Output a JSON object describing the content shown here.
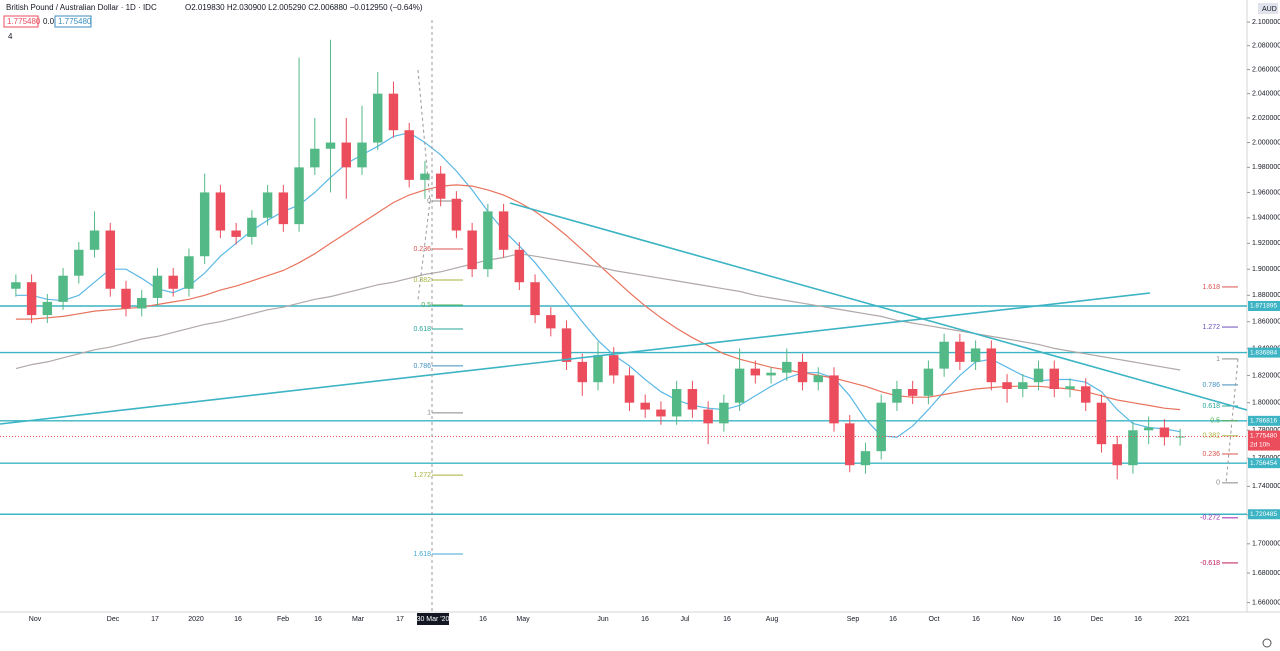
{
  "chart_data": {
    "type": "candlestick",
    "title": "British Pound / Australian Dollar · 1D · IDC",
    "ohlc_header": "O2.019830 H2.030900 L2.005290 C2.006880 −0.012950 (−0.64%)",
    "indicator_labels": [
      "1.775480",
      "0.0",
      "1.775480",
      "4"
    ],
    "currency": "AUD",
    "log_scale": true,
    "ylim": [
      1.6537,
      2.1103
    ],
    "yticks": [
      {
        "value": 2.1,
        "label": "2.100000"
      },
      {
        "value": 2.08,
        "label": "2.080000"
      },
      {
        "value": 2.06,
        "label": "2.060000"
      },
      {
        "value": 2.04,
        "label": "2.040000"
      },
      {
        "value": 2.02,
        "label": "2.020000"
      },
      {
        "value": 2.0,
        "label": "2.000000"
      },
      {
        "value": 1.98,
        "label": "1.980000"
      },
      {
        "value": 1.96,
        "label": "1.960000"
      },
      {
        "value": 1.94,
        "label": "1.940000"
      },
      {
        "value": 1.92,
        "label": "1.920000"
      },
      {
        "value": 1.9,
        "label": "1.900000"
      },
      {
        "value": 1.88,
        "label": "1.880000"
      },
      {
        "value": 1.86,
        "label": "1.860000"
      },
      {
        "value": 1.84,
        "label": "1.840000"
      },
      {
        "value": 1.82,
        "label": "1.820000"
      },
      {
        "value": 1.8,
        "label": "1.800000"
      },
      {
        "value": 1.78,
        "label": "1.780000"
      },
      {
        "value": 1.76,
        "label": "1.760000"
      },
      {
        "value": 1.74,
        "label": "1.740000"
      },
      {
        "value": 1.72,
        "label": "1.720000"
      },
      {
        "value": 1.7,
        "label": "1.700000"
      },
      {
        "value": 1.68,
        "label": "1.680000"
      },
      {
        "value": 1.66,
        "label": "1.660000"
      }
    ],
    "x_labels": [
      "Nov",
      "Dec",
      "17",
      "2020",
      "16",
      "Feb",
      "16",
      "Mar",
      "17",
      "16",
      "May",
      "Jun",
      "16",
      "Jul",
      "16",
      "Aug",
      "Sep",
      "16",
      "Oct",
      "16",
      "Nov",
      "16",
      "Dec",
      "16",
      "2021"
    ],
    "crosshair_label": "30 Mar '20",
    "up_color": "#53b987",
    "down_color": "#eb4d5c",
    "categories": [
      null,
      null,
      null,
      null,
      null,
      null,
      null,
      null,
      null,
      null,
      null,
      null,
      null,
      null,
      null,
      null,
      null,
      null,
      null,
      null,
      null,
      null,
      null,
      null,
      null,
      null,
      null,
      null,
      null,
      null,
      null,
      null,
      null,
      null,
      null,
      null,
      null,
      null,
      null,
      null,
      null,
      null,
      null,
      null,
      null,
      null,
      null,
      null,
      null,
      null,
      null,
      null,
      null,
      null,
      null,
      null,
      null,
      null,
      null,
      null,
      null,
      null,
      null,
      null,
      null,
      null,
      null,
      null,
      null,
      null,
      null,
      null,
      null,
      null,
      null
    ],
    "open": [
      1.885,
      1.89,
      1.865,
      1.875,
      1.895,
      1.915,
      1.93,
      1.885,
      1.87,
      1.878,
      1.895,
      1.885,
      1.91,
      1.96,
      1.93,
      1.925,
      1.94,
      1.96,
      1.935,
      1.98,
      1.995,
      2.0,
      1.98,
      2.0,
      2.04,
      2.01,
      1.97,
      1.975,
      1.955,
      1.93,
      1.9,
      1.945,
      1.915,
      1.89,
      1.865,
      1.855,
      1.83,
      1.815,
      1.835,
      1.82,
      1.8,
      1.795,
      1.79,
      1.81,
      1.795,
      1.785,
      1.8,
      1.825,
      1.82,
      1.822,
      1.83,
      1.815,
      1.82,
      1.785,
      1.755,
      1.765,
      1.8,
      1.81,
      1.805,
      1.825,
      1.845,
      1.83,
      1.84,
      1.815,
      1.81,
      1.815,
      1.825,
      1.81,
      1.812,
      1.8,
      1.77,
      1.755,
      1.78,
      1.782,
      1.775
    ],
    "high": [
      1.896,
      1.896,
      1.881,
      1.901,
      1.921,
      1.945,
      1.936,
      1.891,
      1.884,
      1.901,
      1.901,
      1.916,
      1.975,
      1.966,
      1.936,
      1.946,
      1.966,
      1.966,
      2.07,
      2.02,
      2.085,
      2.02,
      2.03,
      2.058,
      2.05,
      2.016,
      1.985,
      1.981,
      1.961,
      1.936,
      1.951,
      1.951,
      1.921,
      1.896,
      1.871,
      1.861,
      1.836,
      1.845,
      1.841,
      1.826,
      1.806,
      1.801,
      1.816,
      1.816,
      1.801,
      1.806,
      1.84,
      1.831,
      1.826,
      1.84,
      1.836,
      1.826,
      1.826,
      1.791,
      1.771,
      1.806,
      1.816,
      1.816,
      1.831,
      1.851,
      1.851,
      1.846,
      1.846,
      1.821,
      1.821,
      1.831,
      1.831,
      1.818,
      1.818,
      1.806,
      1.776,
      1.786,
      1.79,
      1.788,
      1.781
    ],
    "low": [
      1.879,
      1.859,
      1.859,
      1.869,
      1.889,
      1.909,
      1.879,
      1.864,
      1.864,
      1.872,
      1.879,
      1.879,
      1.904,
      1.924,
      1.919,
      1.919,
      1.934,
      1.929,
      1.929,
      1.974,
      1.96,
      1.955,
      1.974,
      1.994,
      2.004,
      1.964,
      1.955,
      1.949,
      1.924,
      1.894,
      1.894,
      1.909,
      1.884,
      1.859,
      1.849,
      1.824,
      1.805,
      1.809,
      1.814,
      1.794,
      1.789,
      1.784,
      1.784,
      1.789,
      1.77,
      1.779,
      1.794,
      1.814,
      1.814,
      1.816,
      1.809,
      1.809,
      1.779,
      1.75,
      1.749,
      1.759,
      1.794,
      1.799,
      1.799,
      1.819,
      1.824,
      1.824,
      1.809,
      1.8,
      1.804,
      1.809,
      1.804,
      1.804,
      1.794,
      1.764,
      1.745,
      1.749,
      1.77,
      1.769,
      1.769
    ],
    "close": [
      1.89,
      1.865,
      1.875,
      1.895,
      1.915,
      1.93,
      1.885,
      1.87,
      1.878,
      1.895,
      1.885,
      1.91,
      1.96,
      1.93,
      1.925,
      1.94,
      1.96,
      1.935,
      1.98,
      1.995,
      2.0,
      1.98,
      2.0,
      2.04,
      2.01,
      1.97,
      1.975,
      1.955,
      1.93,
      1.9,
      1.945,
      1.915,
      1.89,
      1.865,
      1.855,
      1.83,
      1.815,
      1.835,
      1.82,
      1.8,
      1.795,
      1.79,
      1.81,
      1.795,
      1.785,
      1.8,
      1.825,
      1.82,
      1.822,
      1.83,
      1.815,
      1.82,
      1.785,
      1.755,
      1.765,
      1.8,
      1.81,
      1.805,
      1.825,
      1.845,
      1.83,
      1.84,
      1.815,
      1.81,
      1.815,
      1.825,
      1.81,
      1.812,
      1.8,
      1.77,
      1.755,
      1.78,
      1.782,
      1.775,
      1.7755
    ],
    "moving_averages": [
      {
        "color": "#5bb8e6",
        "values": [
          1.88,
          1.88,
          1.877,
          1.876,
          1.88,
          1.89,
          1.9,
          1.9,
          1.893,
          1.885,
          1.882,
          1.887,
          1.897,
          1.91,
          1.92,
          1.93,
          1.938,
          1.945,
          1.95,
          1.96,
          1.972,
          1.983,
          1.99,
          1.997,
          2.005,
          2.008,
          2.0,
          1.99,
          1.977,
          1.962,
          1.945,
          1.93,
          1.918,
          1.905,
          1.89,
          1.875,
          1.86,
          1.846,
          1.835,
          1.827,
          1.817,
          1.808,
          1.802,
          1.798,
          1.796,
          1.795,
          1.798,
          1.805,
          1.812,
          1.818,
          1.822,
          1.822,
          1.818,
          1.805,
          1.788,
          1.776,
          1.775,
          1.783,
          1.795,
          1.808,
          1.82,
          1.83,
          1.832,
          1.826,
          1.82,
          1.816,
          1.817,
          1.817,
          1.815,
          1.808,
          1.795,
          1.785,
          1.782,
          1.781,
          1.779
        ]
      },
      {
        "color": "#e8735c",
        "values": [
          1.862,
          1.862,
          1.863,
          1.864,
          1.866,
          1.868,
          1.869,
          1.87,
          1.871,
          1.873,
          1.875,
          1.877,
          1.88,
          1.884,
          1.887,
          1.891,
          1.895,
          1.899,
          1.905,
          1.912,
          1.92,
          1.928,
          1.936,
          1.944,
          1.952,
          1.958,
          1.962,
          1.965,
          1.966,
          1.965,
          1.962,
          1.958,
          1.952,
          1.945,
          1.936,
          1.926,
          1.915,
          1.904,
          1.893,
          1.882,
          1.872,
          1.863,
          1.855,
          1.848,
          1.842,
          1.836,
          1.832,
          1.829,
          1.826,
          1.824,
          1.822,
          1.82,
          1.818,
          1.815,
          1.812,
          1.808,
          1.805,
          1.804,
          1.804,
          1.806,
          1.808,
          1.81,
          1.811,
          1.812,
          1.812,
          1.812,
          1.811,
          1.81,
          1.808,
          1.805,
          1.802,
          1.8,
          1.798,
          1.796,
          1.795
        ]
      },
      {
        "color": "#b0a8a8",
        "values": [
          1.825,
          1.828,
          1.83,
          1.833,
          1.836,
          1.839,
          1.841,
          1.844,
          1.847,
          1.849,
          1.852,
          1.855,
          1.858,
          1.86,
          1.863,
          1.866,
          1.869,
          1.871,
          1.874,
          1.877,
          1.879,
          1.882,
          1.885,
          1.888,
          1.89,
          1.893,
          1.896,
          1.898,
          1.901,
          1.904,
          1.907,
          1.909,
          1.912,
          1.91,
          1.908,
          1.906,
          1.904,
          1.902,
          1.899,
          1.897,
          1.895,
          1.893,
          1.891,
          1.889,
          1.887,
          1.885,
          1.883,
          1.88,
          1.878,
          1.876,
          1.874,
          1.872,
          1.87,
          1.868,
          1.866,
          1.864,
          1.861,
          1.859,
          1.857,
          1.855,
          1.853,
          1.851,
          1.849,
          1.847,
          1.845,
          1.843,
          1.84,
          1.838,
          1.836,
          1.834,
          1.832,
          1.83,
          1.828,
          1.826,
          1.824
        ]
      }
    ],
    "price_lines": [
      {
        "value": 1.871895,
        "label": "1.871895"
      },
      {
        "value": 1.836884,
        "label": "1.836884"
      },
      {
        "value": 1.786816,
        "label": "1.786816"
      },
      {
        "value": 1.756454,
        "label": "1.756454"
      },
      {
        "value": 1.720485,
        "label": "1.720485"
      }
    ],
    "price_line_color": "#3cb4c4",
    "last_price": {
      "value": 1.77548,
      "label": "1.775480"
    },
    "countdown": "2d 10h",
    "fib_left": [
      {
        "value": 1.9532,
        "label": "0",
        "color": "#888888"
      },
      {
        "value": 1.9156,
        "label": "0.236",
        "color": "#d9534f"
      },
      {
        "value": 1.8917,
        "label": "0.382",
        "color": "#a8b23a"
      },
      {
        "value": 1.8726,
        "label": "0.5",
        "color": "#4caf50"
      },
      {
        "value": 1.8545,
        "label": "0.618",
        "color": "#26a69a"
      },
      {
        "value": 1.827,
        "label": "0.786",
        "color": "#3d8fbf"
      },
      {
        "value": 1.7926,
        "label": "1",
        "color": "#888888"
      },
      {
        "value": 1.748,
        "label": "1.272",
        "color": "#a8b23a"
      },
      {
        "value": 1.693,
        "label": "1.618",
        "color": "#3da9d6"
      }
    ],
    "fib_right": [
      {
        "value": 1.8864,
        "label": "1.618",
        "color": "#d9534f"
      },
      {
        "value": 1.856,
        "label": "1.272",
        "color": "#6a4fbf"
      },
      {
        "value": 1.8322,
        "label": "1",
        "color": "#888888"
      },
      {
        "value": 1.813,
        "label": "0.786",
        "color": "#3d8fbf"
      },
      {
        "value": 1.7976,
        "label": "0.618",
        "color": "#26a69a"
      },
      {
        "value": 1.7869,
        "label": "0.5",
        "color": "#4caf50"
      },
      {
        "value": 1.776,
        "label": "0.382",
        "color": "#a8b23a"
      },
      {
        "value": 1.763,
        "label": "0.236",
        "color": "#d9534f"
      },
      {
        "value": 1.7425,
        "label": "0",
        "color": "#888888"
      },
      {
        "value": 1.718,
        "label": "-0.272",
        "color": "#9c27b0"
      },
      {
        "value": 1.6869,
        "label": "-0.618",
        "color": "#c2185b"
      }
    ]
  }
}
